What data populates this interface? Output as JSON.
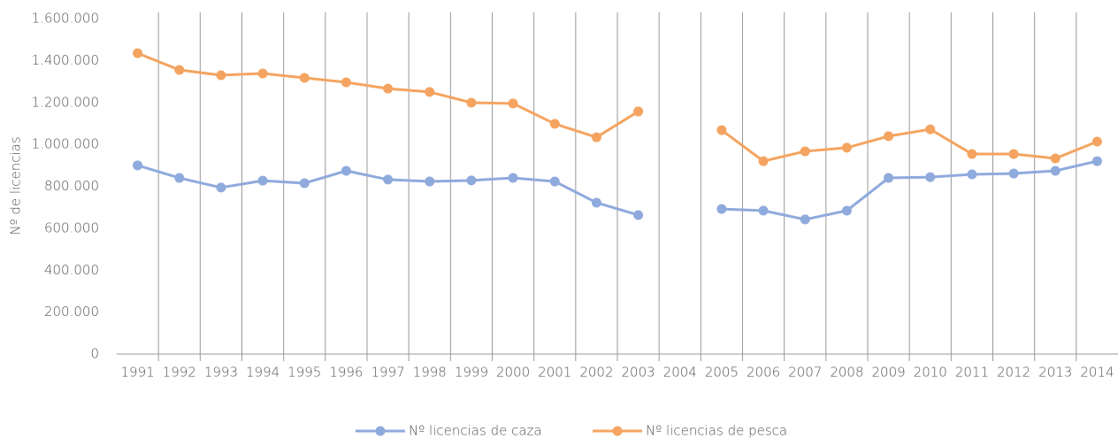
{
  "chart_data": {
    "type": "line",
    "y_label": "Nº de licencias",
    "categories": [
      "1991",
      "1992",
      "1993",
      "1994",
      "1995",
      "1996",
      "1997",
      "1998",
      "1999",
      "2000",
      "2001",
      "2002",
      "2003",
      "2004",
      "2005",
      "2006",
      "2007",
      "2008",
      "2009",
      "2010",
      "2011",
      "2012",
      "2013",
      "2014"
    ],
    "series": [
      {
        "name": "Nº licencias de caza",
        "color": "#8faadc",
        "values": [
          900000,
          840000,
          794000,
          827000,
          815000,
          874000,
          832000,
          823000,
          828000,
          840000,
          823000,
          722000,
          663000,
          null,
          692000,
          684000,
          642000,
          684000,
          840000,
          844000,
          857000,
          861000,
          874000,
          920000
        ]
      },
      {
        "name": "Nº licencias de pesca",
        "color": "#f4a460",
        "values": [
          1435000,
          1355000,
          1330000,
          1338000,
          1317000,
          1296000,
          1266000,
          1250000,
          1199000,
          1195000,
          1098000,
          1034000,
          1157000,
          null,
          1068000,
          920000,
          967000,
          984000,
          1039000,
          1072000,
          954000,
          954000,
          933000,
          1013000
        ]
      }
    ],
    "ylim": [
      0,
      1600000
    ],
    "yticks": [
      0,
      {
        "value": 200000,
        "label": "200.000"
      },
      {
        "value": 400000,
        "label": "400.000"
      },
      {
        "value": 600000,
        "label": "600.000"
      },
      {
        "value": 800000,
        "label": "800.000"
      },
      {
        "value": 1000000,
        "label": "1.000.000"
      },
      {
        "value": 1200000,
        "label": "1.200.000"
      },
      {
        "value": 1400000,
        "label": "1.400.000"
      },
      {
        "value": 1600000,
        "label": "1.600.000"
      }
    ],
    "legend": "bottom"
  }
}
